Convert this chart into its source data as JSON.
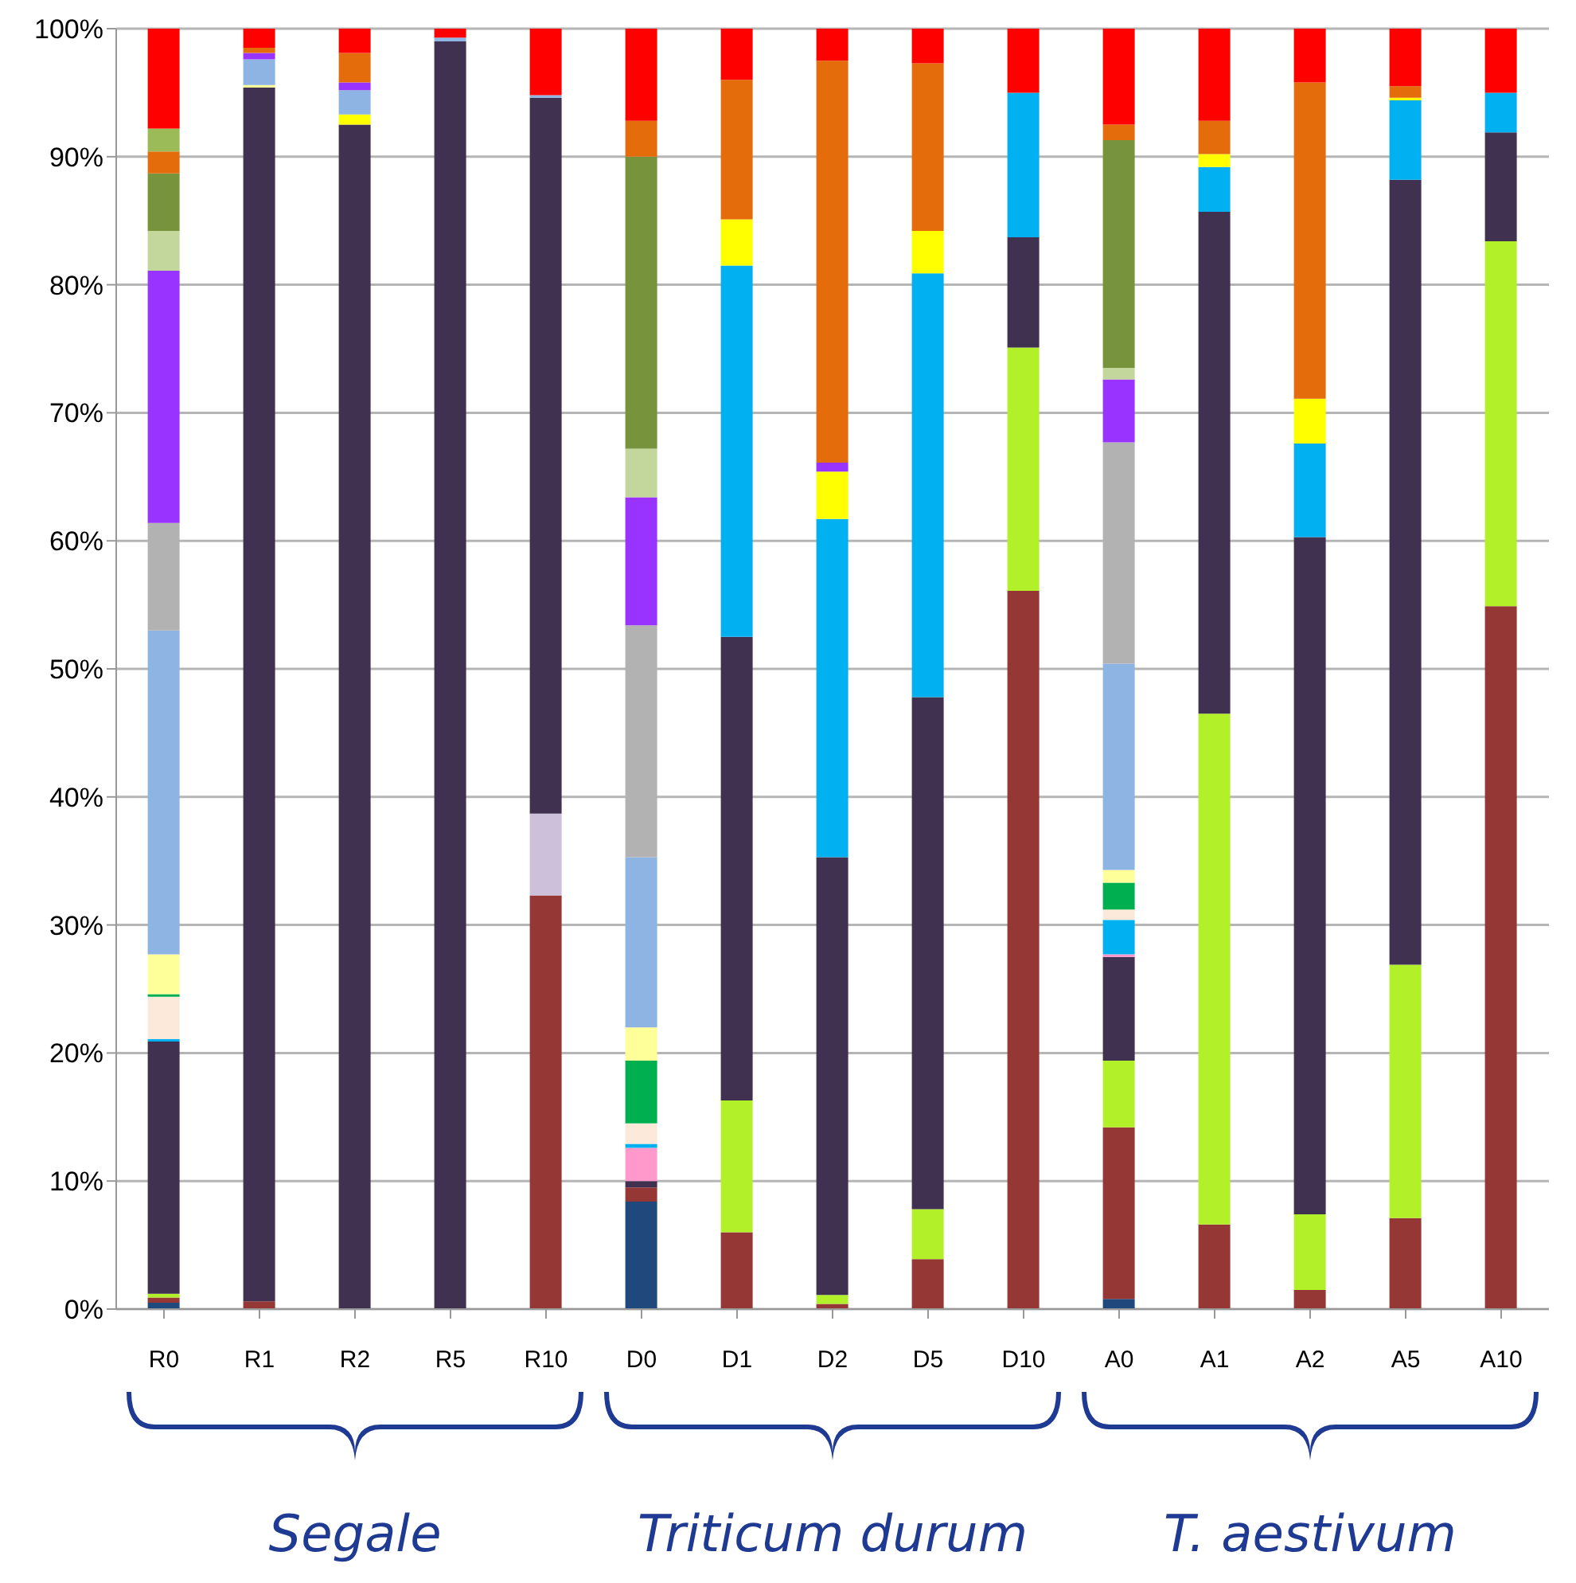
{
  "chart_data": {
    "type": "bar",
    "stacked": true,
    "grid": "y",
    "legend": false,
    "categories": [
      "R0",
      "R1",
      "R2",
      "R5",
      "R10",
      "D0",
      "D1",
      "D2",
      "D5",
      "D10",
      "A0",
      "A1",
      "A2",
      "A5",
      "A10"
    ],
    "ylim": [
      0,
      100
    ],
    "yticks": [
      {
        "value": 0,
        "label": "0%"
      },
      {
        "value": 10,
        "label": "10%"
      },
      {
        "value": 20,
        "label": "20%"
      },
      {
        "value": 30,
        "label": "30%"
      },
      {
        "value": 40,
        "label": "40%"
      },
      {
        "value": 50,
        "label": "50%"
      },
      {
        "value": 60,
        "label": "60%"
      },
      {
        "value": 70,
        "label": "70%"
      },
      {
        "value": 80,
        "label": "80%"
      },
      {
        "value": 90,
        "label": "90%"
      },
      {
        "value": 100,
        "label": "100%"
      }
    ],
    "annotations": [
      "Segale",
      "Triticum durum",
      "T. aestivum"
    ],
    "series": [
      {
        "color": "#1f497d",
        "values": [
          0.5,
          0,
          0,
          0,
          0,
          8.4,
          0,
          0,
          0,
          0,
          0.8,
          0,
          0,
          0,
          0
        ]
      },
      {
        "color": "#953735",
        "values": [
          0.4,
          0.6,
          0,
          0,
          32.3,
          1.1,
          6.0,
          0.4,
          3.9,
          56.1,
          13.4,
          6.6,
          1.5,
          7.1,
          54.9
        ]
      },
      {
        "color": "#b2f02a",
        "values": [
          0.3,
          0,
          0,
          0,
          0,
          0,
          10.3,
          0.7,
          3.9,
          19.0,
          5.2,
          39.9,
          5.9,
          19.8,
          28.5
        ]
      },
      {
        "color": "#ccc0da",
        "values": [
          0,
          0,
          0,
          0,
          6.4,
          0,
          0,
          0,
          0,
          0,
          0,
          0,
          0,
          0,
          0
        ]
      },
      {
        "color": "#403151",
        "values": [
          19.7,
          94.8,
          92.5,
          99.0,
          55.9,
          0.5,
          36.2,
          34.2,
          40.0,
          8.6,
          8.1,
          39.2,
          52.9,
          61.3,
          8.5
        ]
      },
      {
        "color": "#ff99cc",
        "values": [
          0,
          0,
          0,
          0,
          0,
          2.6,
          0,
          0,
          0,
          0,
          0.2,
          0,
          0,
          0,
          0
        ]
      },
      {
        "color": "#00b0f0",
        "values": [
          0.2,
          0,
          0,
          0,
          0,
          0.3,
          29.0,
          26.4,
          33.1,
          11.3,
          2.7,
          3.5,
          7.3,
          6.2,
          3.1
        ]
      },
      {
        "color": "#fde9d9",
        "values": [
          3.3,
          0,
          0,
          0,
          0,
          1.6,
          0,
          0,
          0,
          0,
          0.8,
          0,
          0,
          0,
          0
        ]
      },
      {
        "color": "#00b050",
        "values": [
          0.2,
          0,
          0,
          0,
          0,
          4.9,
          0,
          0,
          0,
          0,
          2.1,
          0,
          0,
          0,
          0
        ]
      },
      {
        "color": "#ffff00",
        "values": [
          0,
          0,
          0.8,
          0,
          0,
          0,
          3.6,
          3.7,
          3.3,
          0,
          0,
          1.0,
          3.5,
          0.2,
          0
        ]
      },
      {
        "color": "#ffff99",
        "values": [
          3.1,
          0.2,
          0,
          0,
          0,
          2.6,
          0,
          0,
          0,
          0,
          1.0,
          0,
          0,
          0,
          0
        ]
      },
      {
        "color": "#8db4e2",
        "values": [
          25.3,
          2.0,
          1.9,
          0.3,
          0.2,
          13.3,
          0,
          0,
          0,
          0,
          16.1,
          0,
          0,
          0,
          0
        ]
      },
      {
        "color": "#b2b2b2",
        "values": [
          8.4,
          0,
          0,
          0,
          0,
          18.1,
          0,
          0,
          0,
          0,
          17.3,
          0,
          0,
          0,
          0
        ]
      },
      {
        "color": "#9933ff",
        "values": [
          19.7,
          0.5,
          0.6,
          0,
          0,
          10.0,
          0,
          0.7,
          0,
          0,
          4.9,
          0,
          0,
          0,
          0
        ]
      },
      {
        "color": "#c3d69b",
        "values": [
          3.1,
          0,
          0,
          0,
          0,
          3.8,
          0,
          0,
          0,
          0,
          0.9,
          0,
          0,
          0,
          0
        ]
      },
      {
        "color": "#77933c",
        "values": [
          4.5,
          0,
          0,
          0,
          0,
          22.8,
          0,
          0,
          0,
          0,
          17.8,
          0,
          0,
          0,
          0
        ]
      },
      {
        "color": "#e46c0a",
        "values": [
          1.7,
          0.4,
          2.3,
          0,
          0,
          2.8,
          10.9,
          31.4,
          13.1,
          0,
          1.2,
          2.6,
          24.7,
          0.9,
          0
        ]
      },
      {
        "color": "#9bbb59",
        "values": [
          1.8,
          0,
          0,
          0,
          0,
          0,
          0,
          0,
          0,
          0,
          0,
          0,
          0,
          0,
          0
        ]
      },
      {
        "color": "#ff0000",
        "values": [
          7.8,
          1.5,
          1.9,
          0.7,
          5.2,
          7.2,
          4.0,
          2.5,
          2.7,
          5.0,
          7.5,
          7.2,
          4.2,
          4.5,
          5.0
        ]
      }
    ]
  }
}
